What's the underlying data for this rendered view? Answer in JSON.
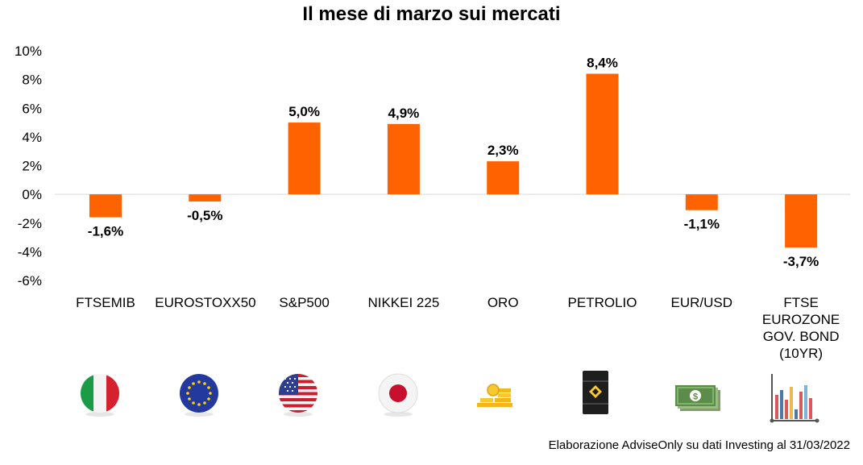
{
  "chart_data": {
    "type": "bar",
    "title": "Il mese di marzo sui mercati",
    "categories": [
      "FTSEMIB",
      "EUROSTOXX50",
      "S&P500",
      "NIKKEI 225",
      "ORO",
      "PETROLIO",
      "EUR/USD",
      "FTSE EUROZONE GOV. BOND (10YR)"
    ],
    "category_lines": [
      [
        "FTSEMIB"
      ],
      [
        "EUROSTOXX50"
      ],
      [
        "S&P500"
      ],
      [
        "NIKKEI 225"
      ],
      [
        "ORO"
      ],
      [
        "PETROLIO"
      ],
      [
        "EUR/USD"
      ],
      [
        "FTSE",
        "EUROZONE",
        "GOV. BOND",
        "(10YR)"
      ]
    ],
    "values": [
      -1.6,
      -0.5,
      5.0,
      4.9,
      2.3,
      8.4,
      -1.1,
      -3.7
    ],
    "value_labels": [
      "-1,6%",
      "-0,5%",
      "5,0%",
      "4,9%",
      "2,3%",
      "8,4%",
      "-1,1%",
      "-3,7%"
    ],
    "yticks": [
      10,
      8,
      6,
      4,
      2,
      0,
      -2,
      -4,
      -6
    ],
    "ytick_labels": [
      "10%",
      "8%",
      "6%",
      "4%",
      "2%",
      "0%",
      "-2%",
      "-4%",
      "-6%"
    ],
    "ylim": [
      -6,
      10
    ],
    "xlabel": "",
    "ylabel": "",
    "bar_color": "#ff6200",
    "grid": false
  },
  "icons": [
    "italy-flag-icon",
    "eu-flag-icon",
    "us-flag-icon",
    "japan-flag-icon",
    "gold-coins-icon",
    "oil-barrel-icon",
    "banknotes-icon",
    "bond-chart-icon"
  ],
  "footer": {
    "source": "Elaborazione AdviseOnly su dati Investing al 31/03/2022"
  }
}
